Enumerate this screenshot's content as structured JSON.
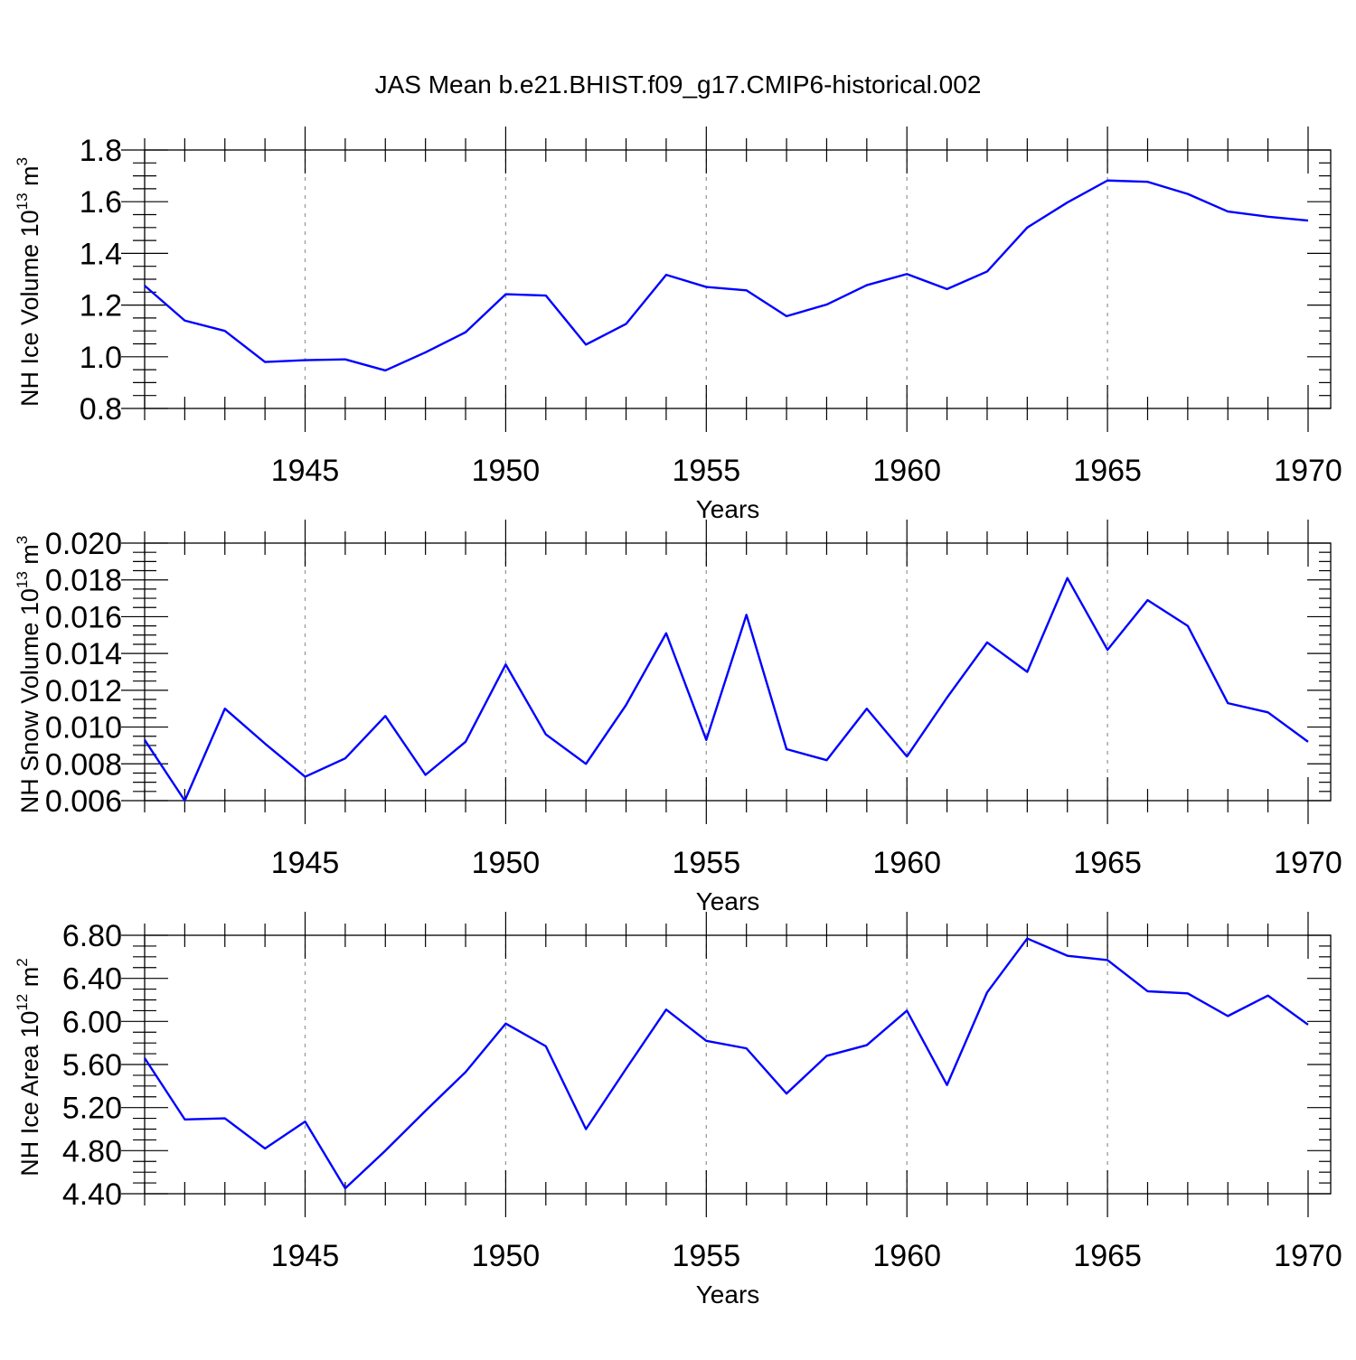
{
  "chart_data": [
    {
      "type": "line",
      "title": "JAS Mean b.e21.BHIST.f09_g17.CMIP6-historical.002",
      "xlabel": "Years",
      "ylabel": "NH Ice Volume 10",
      "ylabel_sup": "13",
      "ylabel_unit": " m",
      "ylabel_unit_sup": "3",
      "xlim": [
        1941,
        1970
      ],
      "ylim": [
        0.8,
        1.8
      ],
      "xticks": [
        1945,
        1950,
        1955,
        1960,
        1965,
        1970
      ],
      "yticks": [
        "0.8",
        "1.0",
        "1.2",
        "1.4",
        "1.6",
        "1.8"
      ],
      "x_minor_step": 1,
      "y_minor_step": 0.05,
      "grid": "dashed vertical at major x ticks",
      "series": [
        {
          "name": "ice_volume",
          "color": "#0000ff",
          "x": [
            1941,
            1942,
            1943,
            1944,
            1945,
            1946,
            1947,
            1948,
            1949,
            1950,
            1951,
            1952,
            1953,
            1954,
            1955,
            1956,
            1957,
            1958,
            1959,
            1960,
            1961,
            1962,
            1963,
            1964,
            1965,
            1966,
            1967,
            1968,
            1969,
            1970
          ],
          "values": [
            1.275,
            1.14,
            1.1,
            0.98,
            0.987,
            0.99,
            0.947,
            1.017,
            1.095,
            1.242,
            1.237,
            1.047,
            1.127,
            1.317,
            1.27,
            1.257,
            1.157,
            1.202,
            1.277,
            1.32,
            1.262,
            1.33,
            1.5,
            1.597,
            1.682,
            1.677,
            1.63,
            1.562,
            1.542,
            1.527
          ]
        }
      ]
    },
    {
      "type": "line",
      "xlabel": "Years",
      "ylabel": "NH Snow Volume 10",
      "ylabel_sup": "13",
      "ylabel_unit": " m",
      "ylabel_unit_sup": "3",
      "xlim": [
        1941,
        1970
      ],
      "ylim": [
        0.006,
        0.02
      ],
      "xticks": [
        1945,
        1950,
        1955,
        1960,
        1965,
        1970
      ],
      "yticks": [
        "0.006",
        "0.008",
        "0.010",
        "0.012",
        "0.014",
        "0.016",
        "0.018",
        "0.020"
      ],
      "x_minor_step": 1,
      "y_minor_step": 0.0005,
      "grid": "dashed vertical at major x ticks",
      "series": [
        {
          "name": "snow_volume",
          "color": "#0000ff",
          "x": [
            1941,
            1942,
            1943,
            1944,
            1945,
            1946,
            1947,
            1948,
            1949,
            1950,
            1951,
            1952,
            1953,
            1954,
            1955,
            1956,
            1957,
            1958,
            1959,
            1960,
            1961,
            1962,
            1963,
            1964,
            1965,
            1966,
            1967,
            1968,
            1969,
            1970
          ],
          "values": [
            0.0093,
            0.006,
            0.011,
            0.0091,
            0.0073,
            0.0083,
            0.0106,
            0.0074,
            0.0092,
            0.0134,
            0.0096,
            0.008,
            0.0112,
            0.0151,
            0.0093,
            0.0161,
            0.0088,
            0.0082,
            0.011,
            0.0084,
            0.0116,
            0.0146,
            0.013,
            0.0181,
            0.0142,
            0.0169,
            0.0155,
            0.0113,
            0.0108,
            0.0092
          ]
        }
      ]
    },
    {
      "type": "line",
      "xlabel": "Years",
      "ylabel": "NH Ice Area 10",
      "ylabel_sup": "12",
      "ylabel_unit": " m",
      "ylabel_unit_sup": "2",
      "xlim": [
        1941,
        1970
      ],
      "ylim": [
        4.4,
        6.8
      ],
      "xticks": [
        1945,
        1950,
        1955,
        1960,
        1965,
        1970
      ],
      "yticks": [
        "4.40",
        "4.80",
        "5.20",
        "5.60",
        "6.00",
        "6.40",
        "6.80"
      ],
      "x_minor_step": 1,
      "y_minor_step": 0.1,
      "grid": "dashed vertical at major x ticks",
      "series": [
        {
          "name": "ice_area",
          "color": "#0000ff",
          "x": [
            1941,
            1942,
            1943,
            1944,
            1945,
            1946,
            1947,
            1948,
            1949,
            1950,
            1951,
            1952,
            1953,
            1954,
            1955,
            1956,
            1957,
            1958,
            1959,
            1960,
            1961,
            1962,
            1963,
            1964,
            1965,
            1966,
            1967,
            1968,
            1969,
            1970
          ],
          "values": [
            5.66,
            5.09,
            5.1,
            4.82,
            5.07,
            4.45,
            4.8,
            5.17,
            5.53,
            5.98,
            5.77,
            5.0,
            5.56,
            6.11,
            5.82,
            5.75,
            5.33,
            5.68,
            5.78,
            6.1,
            5.41,
            6.27,
            6.77,
            6.61,
            6.57,
            6.28,
            6.26,
            6.05,
            6.24,
            5.97
          ]
        }
      ]
    }
  ]
}
